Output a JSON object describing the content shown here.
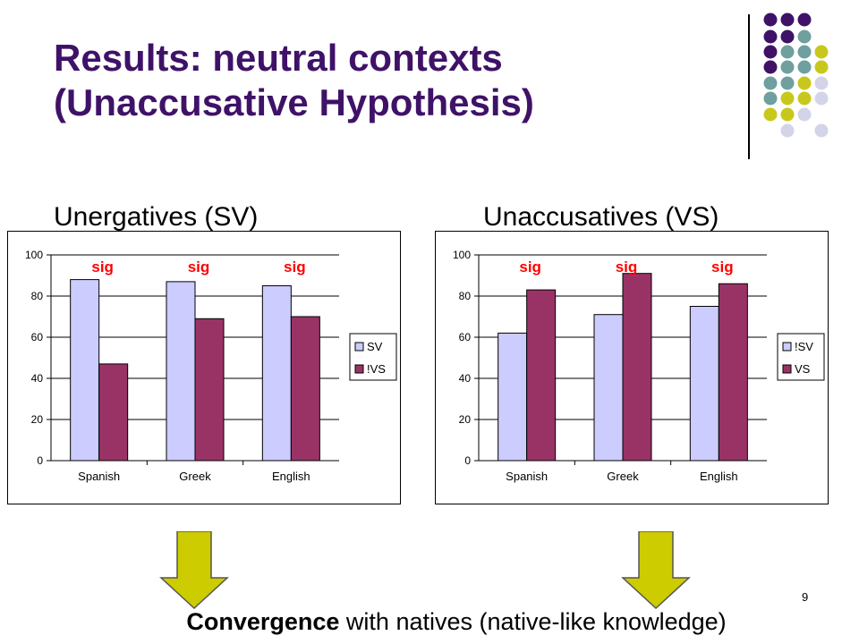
{
  "slide": {
    "title_line1": "Results: neutral contexts",
    "title_line2": "(Unaccusative Hypothesis)",
    "left_subtitle": "Unergatives (SV)",
    "right_subtitle": "Unaccusatives (VS)",
    "footer_bold": "Convergence",
    "footer_rest": " with natives (native-like knowledge)",
    "page_number": "9"
  },
  "colors": {
    "title": "#3f1268",
    "bar_light": "#ccccff",
    "bar_dark": "#993366",
    "sig": "#ff0000",
    "arrow": "#cccc00",
    "dot_purple": "#3f1268",
    "dot_teal": "#6f9f9f",
    "dot_olive": "#c8c81c",
    "dot_lavender": "#d4d4e8"
  },
  "chart_data": [
    {
      "type": "bar",
      "categories": [
        "Spanish",
        "Greek",
        "English"
      ],
      "series": [
        {
          "name": "SV",
          "values": [
            88,
            87,
            85
          ]
        },
        {
          "name": "!VS",
          "values": [
            47,
            69,
            70
          ]
        }
      ],
      "ylim": [
        0,
        100
      ],
      "yticks": [
        "0",
        "20",
        "40",
        "60",
        "80",
        "100"
      ],
      "annotations": [
        "sig",
        "sig",
        "sig"
      ],
      "legend_position": "right",
      "grid": true
    },
    {
      "type": "bar",
      "categories": [
        "Spanish",
        "Greek",
        "English"
      ],
      "series": [
        {
          "name": "!SV",
          "values": [
            62,
            71,
            75
          ]
        },
        {
          "name": "VS",
          "values": [
            83,
            91,
            86
          ]
        }
      ],
      "ylim": [
        0,
        100
      ],
      "yticks": [
        "0",
        "20",
        "40",
        "60",
        "80",
        "100"
      ],
      "annotations": [
        "sig",
        "sig",
        "sig"
      ],
      "legend_position": "right",
      "grid": true
    }
  ]
}
